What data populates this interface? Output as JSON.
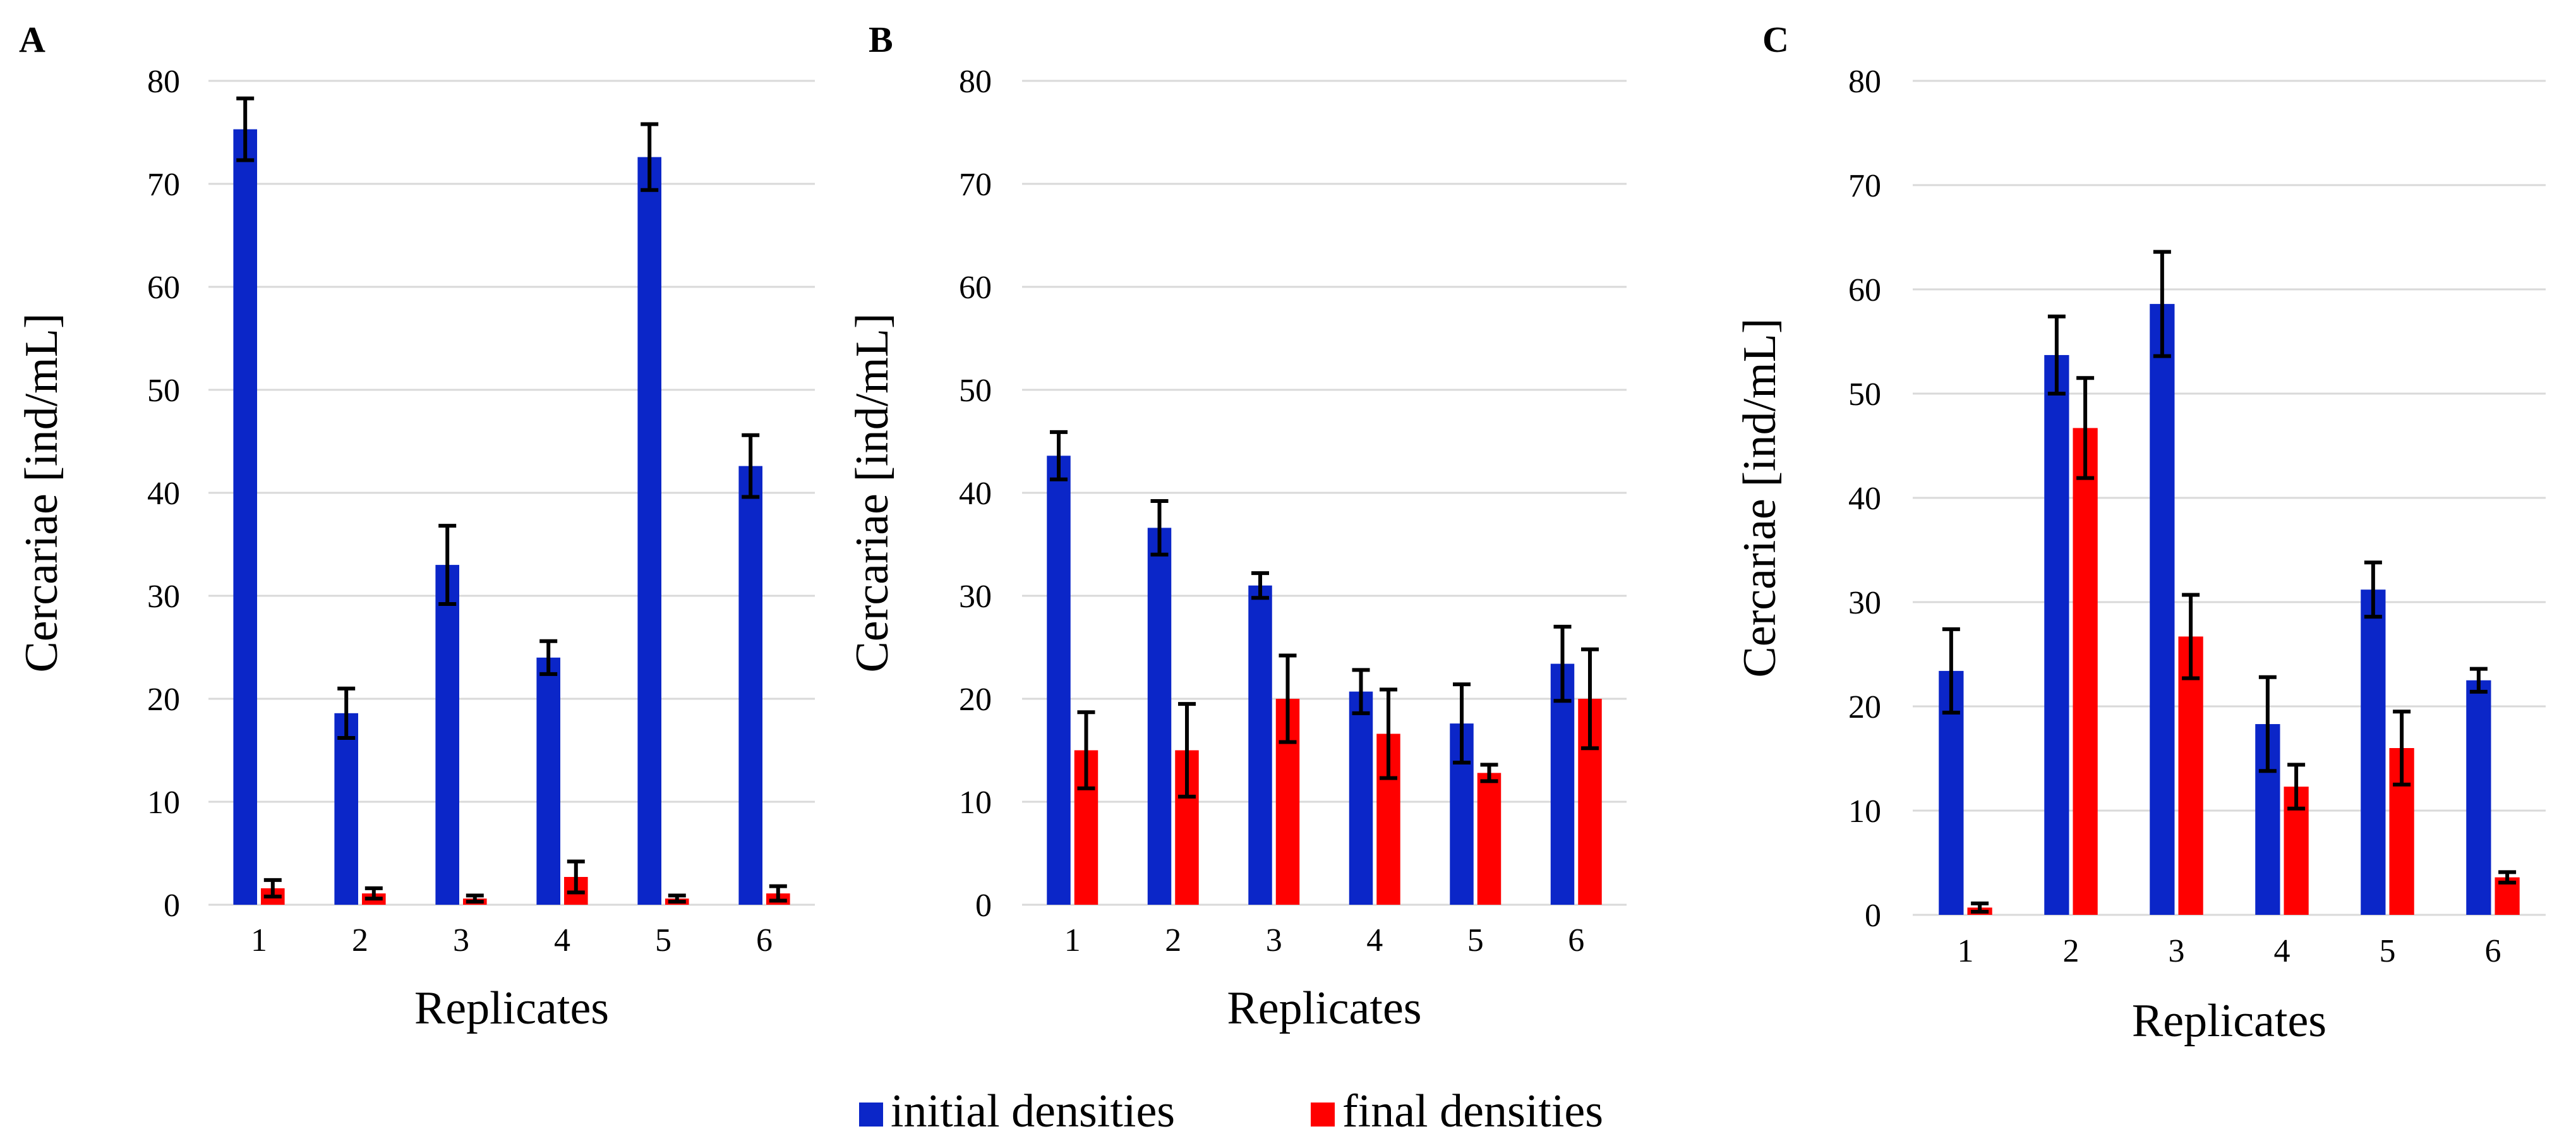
{
  "legend": [
    {
      "label": "initial densities",
      "color": "#0b26c8"
    },
    {
      "label": "final densities",
      "color": "#ff0000"
    }
  ],
  "chart_data": [
    {
      "panel": "A",
      "type": "bar",
      "categories": [
        "1",
        "2",
        "3",
        "4",
        "5",
        "6"
      ],
      "xlabel": "Replicates",
      "ylabel": "Cercariae  [ind/mL]",
      "ylim": [
        0,
        80
      ],
      "yticks": [
        0,
        10,
        20,
        30,
        40,
        50,
        60,
        70,
        80
      ],
      "grid": "horizontal",
      "series": [
        {
          "name": "initial densities",
          "values": [
            75.3,
            18.6,
            33.0,
            24.0,
            72.6,
            42.6
          ],
          "errors": [
            3.0,
            2.4,
            3.8,
            1.6,
            3.2,
            3.0
          ]
        },
        {
          "name": "final densities",
          "values": [
            1.6,
            1.1,
            0.6,
            2.7,
            0.6,
            1.1
          ],
          "errors": [
            0.8,
            0.5,
            0.3,
            1.5,
            0.3,
            0.7
          ]
        }
      ]
    },
    {
      "panel": "B",
      "type": "bar",
      "categories": [
        "1",
        "2",
        "3",
        "4",
        "5",
        "6"
      ],
      "xlabel": "Replicates",
      "ylabel": "Cercariae  [ind/mL]",
      "ylim": [
        0,
        80
      ],
      "yticks": [
        0,
        10,
        20,
        30,
        40,
        50,
        60,
        70,
        80
      ],
      "grid": "horizontal",
      "series": [
        {
          "name": "initial densities",
          "values": [
            43.6,
            36.6,
            31.0,
            20.7,
            17.6,
            23.4
          ],
          "errors": [
            2.3,
            2.6,
            1.2,
            2.1,
            3.8,
            3.6
          ]
        },
        {
          "name": "final densities",
          "values": [
            15.0,
            15.0,
            20.0,
            16.6,
            12.8,
            20.0
          ],
          "errors": [
            3.7,
            4.5,
            4.2,
            4.3,
            0.8,
            4.8
          ]
        }
      ]
    },
    {
      "panel": "C",
      "type": "bar",
      "categories": [
        "1",
        "2",
        "3",
        "4",
        "5",
        "6"
      ],
      "xlabel": "Replicates",
      "ylabel": "Cercariae  [ind/mL]",
      "ylim": [
        0,
        80
      ],
      "yticks": [
        0,
        10,
        20,
        30,
        40,
        50,
        60,
        70,
        80
      ],
      "grid": "horizontal",
      "series": [
        {
          "name": "initial densities",
          "values": [
            23.4,
            53.7,
            58.6,
            18.3,
            31.2,
            22.5
          ],
          "errors": [
            4.0,
            3.7,
            5.0,
            4.5,
            2.6,
            1.1
          ]
        },
        {
          "name": "final densities",
          "values": [
            0.7,
            46.7,
            26.7,
            12.3,
            16.0,
            3.6
          ],
          "errors": [
            0.4,
            4.8,
            4.0,
            2.1,
            3.5,
            0.5
          ]
        }
      ]
    }
  ]
}
